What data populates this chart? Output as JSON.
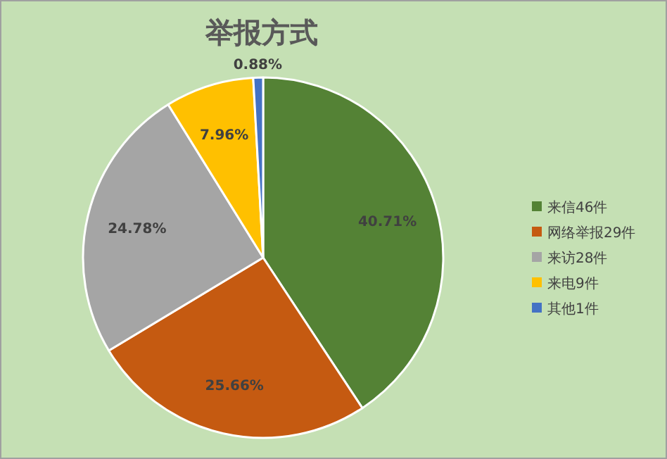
{
  "chart_data": {
    "type": "pie",
    "title": "举报方式",
    "categories": [
      "来信46件",
      "网络举报29件",
      "来访28件",
      "来电9件",
      "其他1件"
    ],
    "values": [
      40.71,
      25.66,
      24.78,
      7.96,
      0.88
    ],
    "value_labels": [
      "40.71%",
      "25.66%",
      "24.78%",
      "7.96%",
      "0.88%"
    ],
    "colors": [
      "#548235",
      "#c55a11",
      "#a5a5a5",
      "#ffc000",
      "#4472c4"
    ],
    "legend": "right"
  }
}
